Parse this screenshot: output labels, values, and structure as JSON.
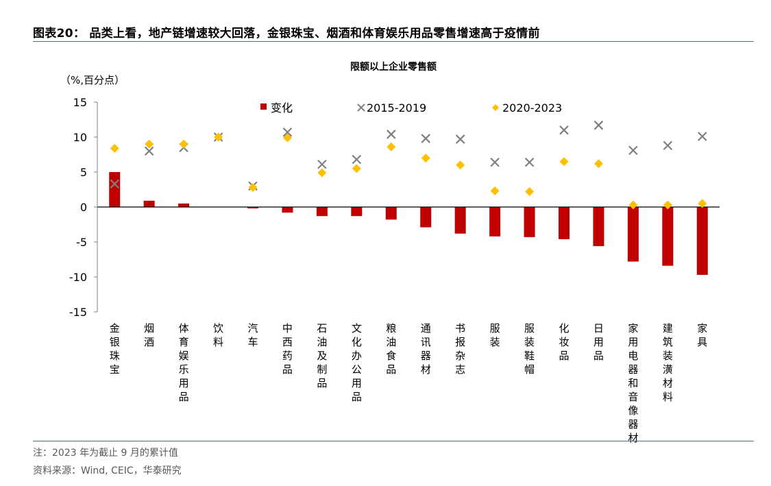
{
  "figure": {
    "title": "图表20： 品类上看，地产链增速较大回落，金银珠宝、烟酒和体育娱乐用品零售增速高于疫情前",
    "note": "注：2023 年为截止 9 月的累计值",
    "source": "资料来源：Wind, CEIC，华泰研究"
  },
  "colors": {
    "bar": "#c00000",
    "cross": "#7f7f7f",
    "diamond": "#ffc000",
    "rule": "#5a6f8f"
  },
  "chart_data": {
    "type": "bar",
    "title": "限额以上企业零售额",
    "ylabel": "（%,百分点）",
    "ylim": [
      -15,
      15
    ],
    "yticks": [
      15,
      10,
      5,
      0,
      -5,
      -10,
      -15
    ],
    "legend_position": "top",
    "grid": false,
    "categories": [
      "金银珠宝",
      "烟酒",
      "体育娱乐用品",
      "饮料",
      "汽车",
      "中西药品",
      "石油及制品",
      "文化办公用品",
      "粮油食品",
      "通讯器材",
      "书报杂志",
      "服装",
      "服装鞋帽",
      "化妆品",
      "日用品",
      "家用电器和音像器材",
      "建筑装潢材料",
      "家具"
    ],
    "series": [
      {
        "name": "变化",
        "type": "bar",
        "values": [
          5.0,
          0.9,
          0.5,
          0.0,
          -0.2,
          -0.8,
          -1.3,
          -1.3,
          -1.8,
          -2.9,
          -3.8,
          -4.2,
          -4.3,
          -4.6,
          -5.6,
          -7.8,
          -8.4,
          -9.7
        ]
      },
      {
        "name": "2015-2019",
        "type": "scatter",
        "marker": "x",
        "values": [
          3.3,
          8.0,
          8.5,
          10.0,
          3.0,
          10.7,
          6.1,
          6.8,
          10.4,
          9.8,
          9.7,
          6.4,
          6.4,
          11.0,
          11.7,
          8.1,
          8.8,
          10.1
        ]
      },
      {
        "name": "2020-2023",
        "type": "scatter",
        "marker": "diamond",
        "values": [
          8.4,
          9.0,
          9.0,
          10.0,
          2.8,
          9.9,
          4.9,
          5.5,
          8.6,
          7.0,
          6.0,
          2.3,
          2.2,
          6.5,
          6.2,
          0.3,
          0.3,
          0.5
        ]
      }
    ]
  }
}
